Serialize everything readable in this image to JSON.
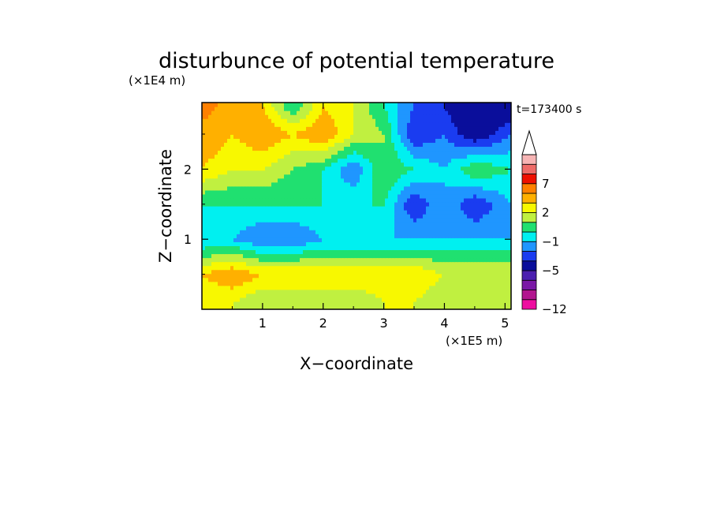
{
  "chart_data": {
    "type": "heatmap",
    "title": "disturbunce of potential temperature",
    "time_label": "t=173400 s",
    "xlabel": "X−coordinate",
    "ylabel": "Z−coordinate",
    "x_unit": "(×1E5 m)",
    "y_unit": "(×1E4 m)",
    "xlim": [
      0,
      5.1
    ],
    "ylim": [
      0,
      2.95
    ],
    "x_ticks": [
      1,
      2,
      3,
      4,
      5
    ],
    "y_ticks": [
      1,
      2
    ],
    "colorbar": {
      "levels": [
        -12,
        -10,
        -8,
        -7,
        -5,
        -3,
        -2,
        -1,
        0,
        1,
        2,
        3,
        5,
        7,
        8,
        10,
        12
      ],
      "labels": [
        {
          "value": -12,
          "text": "−12"
        },
        {
          "value": -5,
          "text": "−5"
        },
        {
          "value": -1,
          "text": "−1"
        },
        {
          "value": 2,
          "text": "2"
        },
        {
          "value": 7,
          "text": "7"
        }
      ],
      "colors": [
        "#ee0ea0",
        "#b2168f",
        "#7a18a6",
        "#4b1fb0",
        "#0a0e9b",
        "#1a3cf0",
        "#1f96ff",
        "#00f0f0",
        "#20e070",
        "#c0f040",
        "#f8f800",
        "#ffb000",
        "#ff8000",
        "#ee1000",
        "#ee6b68",
        "#f6b4b4"
      ],
      "extend": "max"
    },
    "x_samples": [
      0,
      0.5,
      1,
      1.5,
      2,
      2.5,
      3,
      3.5,
      4,
      4.5,
      5.1
    ],
    "z_samples": [
      0.1,
      0.5,
      1,
      1.5,
      2,
      2.5,
      2.9
    ],
    "field": [
      [
        2,
        2,
        1,
        1,
        1,
        1,
        2,
        2,
        1,
        2,
        1
      ],
      [
        3,
        4,
        3,
        3,
        3,
        3,
        3,
        3,
        2,
        2,
        2
      ],
      [
        -1,
        -1,
        -2,
        -2,
        -1,
        -1,
        -1,
        -1,
        -1,
        -1,
        -1
      ],
      [
        0,
        0,
        0,
        0,
        0,
        0,
        0,
        -3,
        -1,
        -3,
        -1
      ],
      [
        3,
        2,
        2,
        1,
        0,
        -2,
        1,
        0,
        -1,
        1,
        0
      ],
      [
        4,
        3,
        4,
        3,
        4,
        2,
        1,
        -3,
        -2,
        -4,
        -2
      ],
      [
        6,
        4,
        3,
        0,
        3,
        2,
        0,
        -2,
        -3,
        -5,
        -4
      ]
    ]
  }
}
